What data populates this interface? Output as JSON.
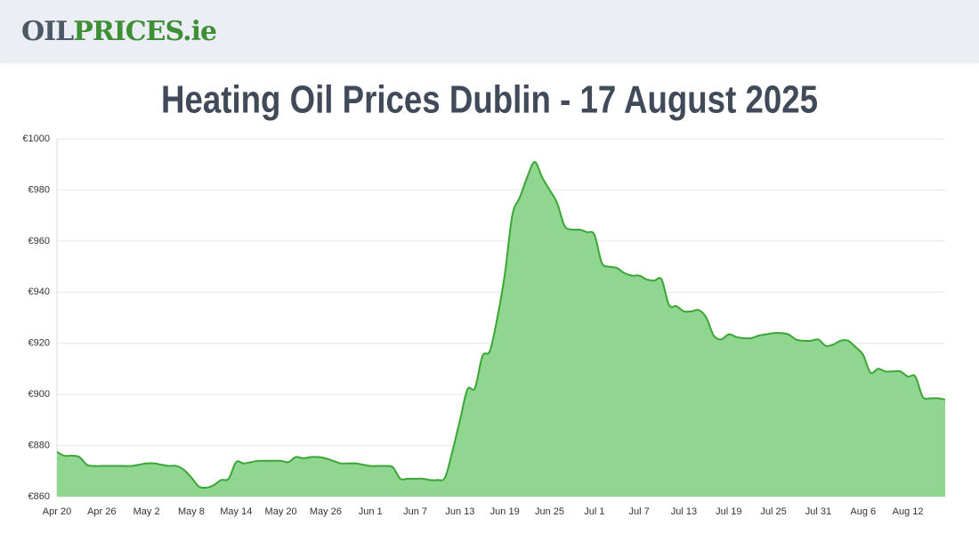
{
  "logo": {
    "part1": "OIL",
    "part2": "PRICES",
    "part3": ".ie"
  },
  "chart_data": {
    "type": "area",
    "title": "Heating Oil Prices Dublin - 17 August 2025",
    "categories": [
      "Apr 20",
      null,
      null,
      null,
      null,
      null,
      "Apr 26",
      null,
      null,
      null,
      null,
      null,
      "May 2",
      null,
      null,
      null,
      null,
      null,
      "May 8",
      null,
      null,
      null,
      null,
      null,
      "May 14",
      null,
      null,
      null,
      null,
      null,
      "May 20",
      null,
      null,
      null,
      null,
      null,
      "May 26",
      null,
      null,
      null,
      null,
      null,
      "Jun 1",
      null,
      null,
      null,
      null,
      null,
      "Jun 7",
      null,
      null,
      null,
      null,
      null,
      "Jun 13",
      null,
      null,
      null,
      null,
      null,
      "Jun 19",
      null,
      null,
      null,
      null,
      null,
      "Jun 25",
      null,
      null,
      null,
      null,
      null,
      "Jul 1",
      null,
      null,
      null,
      null,
      null,
      "Jul 7",
      null,
      null,
      null,
      null,
      null,
      "Jul 13",
      null,
      null,
      null,
      null,
      null,
      "Jul 19",
      null,
      null,
      null,
      null,
      null,
      "Jul 25",
      null,
      null,
      null,
      null,
      null,
      "Jul 31",
      null,
      null,
      null,
      null,
      null,
      "Aug 6",
      null,
      null,
      null,
      null,
      null,
      "Aug 12",
      null,
      null,
      null,
      null,
      null
    ],
    "values": [
      877.5,
      876,
      876,
      875.5,
      872.5,
      872,
      872,
      872,
      872,
      872,
      872,
      872.5,
      873,
      873,
      872.5,
      872,
      872,
      870.5,
      867.5,
      864,
      863.5,
      864.5,
      866.5,
      867,
      873.5,
      873,
      873.5,
      874,
      874,
      874,
      874,
      873.5,
      875.5,
      875,
      875.5,
      875.5,
      875,
      874,
      873,
      873,
      873,
      872.5,
      872,
      872,
      872,
      871.5,
      867,
      867,
      867,
      867,
      866.5,
      866.5,
      867.5,
      878,
      890,
      902,
      902.5,
      915,
      917,
      930,
      947,
      970,
      977,
      985,
      991,
      985,
      980,
      975,
      966,
      964.5,
      964.5,
      963.5,
      962.5,
      951.5,
      950,
      949.5,
      947.5,
      946.5,
      946.5,
      945,
      944.5,
      945,
      935,
      934.5,
      932.5,
      932.5,
      933,
      930,
      923,
      921.5,
      923.5,
      922.5,
      922,
      922,
      923,
      923.5,
      924,
      924,
      923.5,
      921.5,
      921,
      921,
      921.5,
      919,
      919.5,
      921,
      921,
      918.5,
      915.5,
      908.5,
      910,
      909,
      909,
      909,
      907,
      907,
      899,
      898.5,
      898.5,
      898
    ],
    "color": "#3aa635",
    "fill": "#90d690",
    "ylim": [
      860,
      1000
    ],
    "yticks": [
      {
        "value": 860,
        "label": "€860"
      },
      {
        "value": 880,
        "label": "€880"
      },
      {
        "value": 900,
        "label": "€900"
      },
      {
        "value": 920,
        "label": "€920"
      },
      {
        "value": 940,
        "label": "€940"
      },
      {
        "value": 960,
        "label": "€960"
      },
      {
        "value": 980,
        "label": "€980"
      },
      {
        "value": 1000,
        "label": "€1000"
      }
    ],
    "grid": true
  }
}
